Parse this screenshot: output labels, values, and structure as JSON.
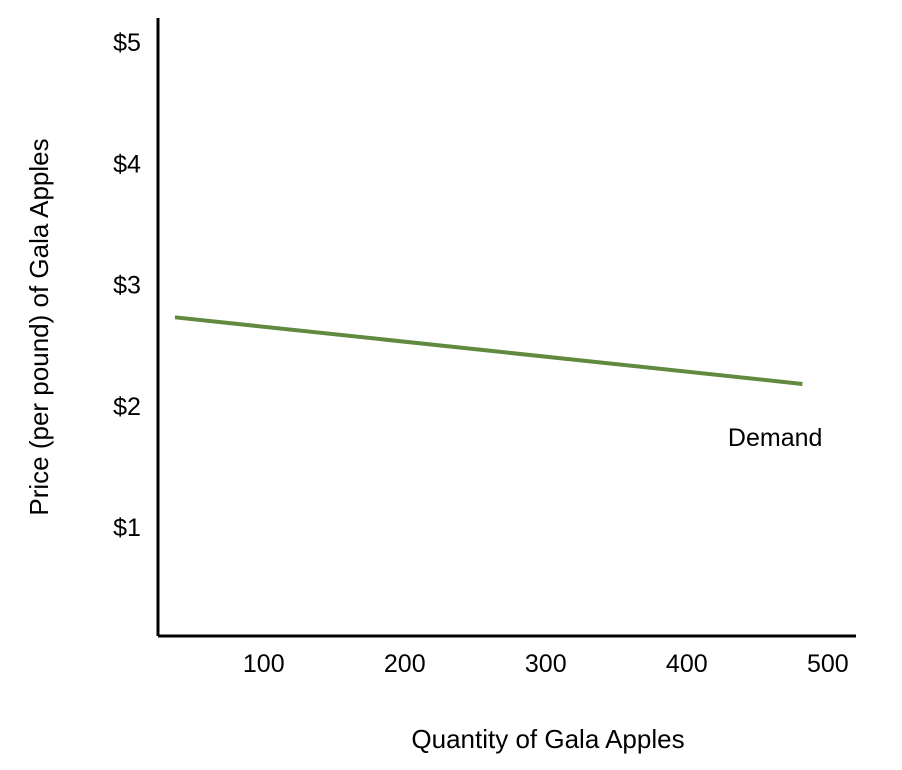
{
  "chart_data": {
    "type": "line",
    "xlabel": "Quantity of Gala Apples",
    "ylabel": "Price (per pound) of Gala Apples",
    "xlim": [
      25,
      520
    ],
    "ylim": [
      0.1,
      5.2
    ],
    "x_ticks": [
      {
        "value": 100,
        "label": "100"
      },
      {
        "value": 200,
        "label": "200"
      },
      {
        "value": 300,
        "label": "300"
      },
      {
        "value": 400,
        "label": "400"
      },
      {
        "value": 500,
        "label": "500"
      }
    ],
    "y_ticks": [
      {
        "value": 1,
        "label": "$1"
      },
      {
        "value": 2,
        "label": "$2"
      },
      {
        "value": 3,
        "label": "$3"
      },
      {
        "value": 4,
        "label": "$4"
      },
      {
        "value": 5,
        "label": "$5"
      }
    ],
    "grid": false,
    "series": [
      {
        "name": "Demand",
        "color": "#5f8a3f",
        "points": [
          {
            "x": 37,
            "y": 2.73
          },
          {
            "x": 482,
            "y": 2.18
          }
        ]
      }
    ]
  }
}
